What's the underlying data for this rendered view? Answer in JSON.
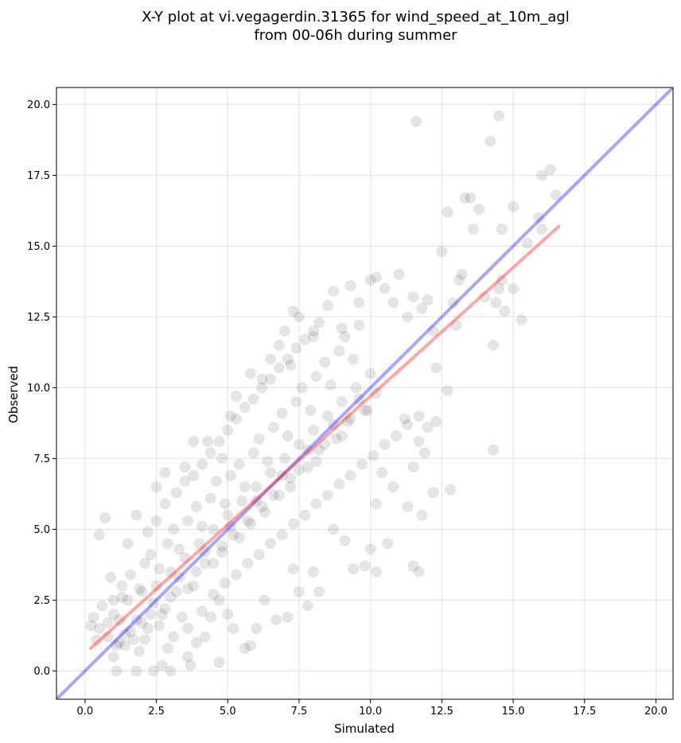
{
  "chart_data": {
    "type": "scatter",
    "title": [
      "X-Y plot at vi.vegagerdin.31365 for wind_speed_at_10m_agl",
      "from 00-06h during summer"
    ],
    "xlabel": "Simulated",
    "ylabel": "Observed",
    "xlim": [
      -1.0,
      20.6
    ],
    "ylim": [
      -1.0,
      20.6
    ],
    "xticks": [
      "0.0",
      "2.5",
      "5.0",
      "7.5",
      "10.0",
      "12.5",
      "15.0",
      "17.5",
      "20.0"
    ],
    "yticks": [
      "0.0",
      "2.5",
      "5.0",
      "7.5",
      "10.0",
      "12.5",
      "15.0",
      "17.5",
      "20.0"
    ],
    "grid": true,
    "point_color": "#000000",
    "point_opacity": 0.1,
    "series": [
      {
        "kind": "points",
        "points": [
          [
            0.5,
            1.5
          ],
          [
            0.8,
            1.2
          ],
          [
            1.0,
            2.0
          ],
          [
            1.2,
            1.0
          ],
          [
            1.5,
            2.5
          ],
          [
            1.8,
            1.8
          ],
          [
            2.0,
            2.8
          ],
          [
            2.2,
            1.5
          ],
          [
            2.5,
            3.0
          ],
          [
            2.8,
            2.2
          ],
          [
            3.0,
            3.5
          ],
          [
            3.2,
            2.8
          ],
          [
            3.5,
            4.0
          ],
          [
            3.8,
            3.0
          ],
          [
            4.0,
            4.5
          ],
          [
            4.2,
            3.8
          ],
          [
            4.5,
            5.0
          ],
          [
            4.8,
            4.2
          ],
          [
            5.0,
            5.5
          ],
          [
            5.2,
            4.8
          ],
          [
            5.5,
            6.0
          ],
          [
            5.8,
            5.2
          ],
          [
            6.0,
            6.5
          ],
          [
            6.2,
            5.8
          ],
          [
            6.5,
            7.0
          ],
          [
            6.8,
            6.2
          ],
          [
            7.0,
            7.5
          ],
          [
            7.2,
            6.8
          ],
          [
            7.5,
            8.0
          ],
          [
            7.8,
            7.2
          ],
          [
            8.0,
            8.5
          ],
          [
            8.2,
            7.8
          ],
          [
            8.5,
            9.0
          ],
          [
            8.8,
            8.2
          ],
          [
            9.0,
            9.5
          ],
          [
            9.2,
            8.8
          ],
          [
            9.5,
            10.0
          ],
          [
            9.8,
            9.2
          ],
          [
            10.0,
            10.5
          ],
          [
            10.2,
            9.8
          ],
          [
            0.7,
            5.4
          ],
          [
            0.5,
            4.8
          ],
          [
            0.9,
            3.3
          ],
          [
            1.3,
            2.6
          ],
          [
            1.0,
            0.5
          ],
          [
            1.1,
            0.0
          ],
          [
            1.8,
            0.0
          ],
          [
            2.4,
            0.0
          ],
          [
            2.7,
            0.2
          ],
          [
            3.0,
            0.0
          ],
          [
            3.6,
            0.5
          ],
          [
            3.7,
            0.2
          ],
          [
            4.7,
            0.3
          ],
          [
            1.5,
            4.5
          ],
          [
            1.8,
            5.5
          ],
          [
            2.5,
            6.5
          ],
          [
            2.8,
            7.0
          ],
          [
            3.5,
            7.2
          ],
          [
            3.8,
            8.1
          ],
          [
            4.3,
            8.1
          ],
          [
            4.8,
            7.5
          ],
          [
            5.1,
            9.0
          ],
          [
            5.3,
            9.7
          ],
          [
            5.8,
            10.5
          ],
          [
            6.2,
            10.3
          ],
          [
            6.5,
            11.0
          ],
          [
            6.8,
            11.5
          ],
          [
            7.0,
            12.0
          ],
          [
            7.2,
            10.8
          ],
          [
            7.5,
            12.5
          ],
          [
            7.3,
            12.7
          ],
          [
            8.0,
            11.8
          ],
          [
            8.2,
            12.3
          ],
          [
            8.5,
            12.9
          ],
          [
            8.7,
            13.4
          ],
          [
            9.0,
            12.1
          ],
          [
            9.3,
            13.6
          ],
          [
            9.6,
            13.0
          ],
          [
            10.0,
            13.8
          ],
          [
            10.2,
            13.9
          ],
          [
            10.5,
            13.5
          ],
          [
            10.8,
            13.0
          ],
          [
            11.0,
            14.0
          ],
          [
            11.3,
            12.5
          ],
          [
            11.5,
            13.2
          ],
          [
            11.8,
            12.8
          ],
          [
            12.0,
            13.1
          ],
          [
            12.2,
            12.0
          ],
          [
            12.5,
            14.8
          ],
          [
            12.7,
            16.2
          ],
          [
            12.9,
            13.0
          ],
          [
            13.1,
            13.8
          ],
          [
            13.3,
            16.7
          ],
          [
            13.5,
            16.7
          ],
          [
            13.6,
            15.6
          ],
          [
            13.8,
            16.3
          ],
          [
            14.0,
            13.2
          ],
          [
            14.3,
            11.5
          ],
          [
            14.5,
            13.5
          ],
          [
            14.4,
            13.0
          ],
          [
            14.6,
            13.8
          ],
          [
            14.7,
            12.7
          ],
          [
            14.6,
            15.6
          ],
          [
            15.0,
            13.5
          ],
          [
            15.0,
            16.4
          ],
          [
            15.3,
            12.4
          ],
          [
            15.5,
            15.1
          ],
          [
            15.9,
            16.0
          ],
          [
            16.0,
            15.6
          ],
          [
            16.0,
            17.5
          ],
          [
            16.3,
            17.7
          ],
          [
            16.5,
            16.8
          ],
          [
            14.2,
            18.7
          ],
          [
            14.5,
            19.6
          ],
          [
            11.6,
            19.4
          ],
          [
            14.3,
            7.8
          ],
          [
            12.7,
            9.9
          ],
          [
            13.0,
            12.2
          ],
          [
            13.2,
            14.0
          ],
          [
            12.3,
            10.7
          ],
          [
            11.2,
            8.9
          ],
          [
            11.5,
            7.2
          ],
          [
            11.7,
            8.1
          ],
          [
            11.9,
            7.7
          ],
          [
            12.2,
            6.3
          ],
          [
            12.0,
            8.6
          ],
          [
            12.3,
            8.8
          ],
          [
            12.8,
            6.4
          ],
          [
            11.3,
            5.8
          ],
          [
            11.8,
            5.5
          ],
          [
            11.5,
            3.7
          ],
          [
            11.7,
            3.5
          ],
          [
            10.6,
            4.5
          ],
          [
            10.8,
            6.5
          ],
          [
            10.2,
            5.9
          ],
          [
            10.4,
            7.0
          ],
          [
            10.0,
            4.3
          ],
          [
            10.2,
            3.5
          ],
          [
            9.8,
            3.7
          ],
          [
            9.4,
            3.6
          ],
          [
            9.1,
            4.6
          ],
          [
            8.7,
            5.0
          ],
          [
            8.2,
            2.8
          ],
          [
            8.0,
            3.5
          ],
          [
            7.8,
            2.3
          ],
          [
            7.5,
            2.8
          ],
          [
            7.3,
            3.6
          ],
          [
            7.1,
            1.9
          ],
          [
            6.7,
            1.8
          ],
          [
            6.3,
            2.5
          ],
          [
            6.0,
            1.5
          ],
          [
            5.8,
            0.9
          ],
          [
            5.6,
            0.8
          ],
          [
            5.2,
            1.5
          ],
          [
            5.0,
            2.0
          ],
          [
            4.7,
            2.5
          ],
          [
            4.4,
            1.9
          ],
          [
            4.2,
            1.2
          ],
          [
            3.9,
            1.0
          ],
          [
            3.6,
            1.5
          ],
          [
            3.4,
            1.9
          ],
          [
            3.1,
            1.2
          ],
          [
            2.9,
            0.8
          ],
          [
            2.6,
            1.6
          ],
          [
            2.3,
            2.0
          ],
          [
            2.1,
            1.1
          ],
          [
            1.9,
            0.7
          ],
          [
            1.6,
            1.4
          ],
          [
            1.4,
            0.9
          ],
          [
            1.2,
            1.8
          ],
          [
            0.3,
            1.9
          ],
          [
            0.2,
            1.6
          ],
          [
            0.4,
            1.1
          ],
          [
            0.6,
            2.3
          ],
          [
            0.8,
            1.7
          ],
          [
            1.0,
            2.5
          ],
          [
            1.3,
            3.0
          ],
          [
            1.6,
            3.4
          ],
          [
            1.9,
            2.9
          ],
          [
            2.1,
            3.8
          ],
          [
            2.3,
            4.1
          ],
          [
            2.6,
            3.6
          ],
          [
            2.9,
            4.5
          ],
          [
            3.1,
            5.0
          ],
          [
            3.3,
            4.3
          ],
          [
            3.6,
            5.3
          ],
          [
            3.9,
            5.8
          ],
          [
            4.1,
            5.1
          ],
          [
            4.4,
            6.1
          ],
          [
            4.6,
            6.7
          ],
          [
            4.9,
            5.9
          ],
          [
            5.1,
            6.9
          ],
          [
            5.4,
            7.3
          ],
          [
            5.6,
            6.5
          ],
          [
            5.9,
            7.7
          ],
          [
            6.1,
            8.2
          ],
          [
            6.4,
            7.4
          ],
          [
            6.6,
            8.6
          ],
          [
            6.9,
            9.1
          ],
          [
            7.1,
            8.3
          ],
          [
            7.4,
            9.5
          ],
          [
            7.6,
            10.0
          ],
          [
            7.9,
            9.2
          ],
          [
            8.1,
            10.4
          ],
          [
            8.4,
            10.9
          ],
          [
            8.6,
            10.1
          ],
          [
            8.9,
            11.3
          ],
          [
            9.1,
            11.8
          ],
          [
            9.4,
            11.0
          ],
          [
            9.6,
            12.2
          ],
          [
            1.1,
            0.9
          ],
          [
            1.4,
            1.3
          ],
          [
            1.7,
            1.1
          ],
          [
            2.0,
            1.7
          ],
          [
            2.4,
            2.4
          ],
          [
            2.7,
            2.0
          ],
          [
            3.0,
            2.6
          ],
          [
            3.3,
            3.3
          ],
          [
            3.6,
            2.9
          ],
          [
            3.9,
            3.5
          ],
          [
            4.2,
            4.2
          ],
          [
            4.5,
            3.8
          ],
          [
            4.8,
            4.4
          ],
          [
            5.1,
            5.1
          ],
          [
            5.4,
            4.7
          ],
          [
            5.7,
            5.3
          ],
          [
            6.0,
            6.0
          ],
          [
            6.3,
            5.6
          ],
          [
            6.6,
            6.2
          ],
          [
            6.9,
            6.9
          ],
          [
            7.2,
            6.5
          ],
          [
            7.5,
            7.1
          ],
          [
            7.8,
            7.8
          ],
          [
            8.1,
            7.4
          ],
          [
            8.4,
            8.0
          ],
          [
            8.7,
            8.7
          ],
          [
            9.0,
            8.3
          ],
          [
            9.3,
            8.9
          ],
          [
            9.6,
            9.6
          ],
          [
            9.9,
            9.2
          ],
          [
            2.2,
            4.9
          ],
          [
            2.5,
            5.3
          ],
          [
            2.8,
            5.9
          ],
          [
            3.2,
            6.3
          ],
          [
            3.5,
            6.7
          ],
          [
            3.8,
            6.9
          ],
          [
            4.1,
            7.3
          ],
          [
            4.4,
            7.7
          ],
          [
            4.7,
            8.1
          ],
          [
            5.0,
            8.5
          ],
          [
            5.3,
            8.9
          ],
          [
            5.6,
            9.3
          ],
          [
            5.9,
            9.6
          ],
          [
            6.2,
            10.0
          ],
          [
            6.5,
            10.3
          ],
          [
            6.8,
            10.7
          ],
          [
            7.1,
            11.0
          ],
          [
            7.4,
            11.4
          ],
          [
            7.7,
            11.7
          ],
          [
            8.0,
            12.0
          ],
          [
            4.1,
            2.1
          ],
          [
            4.5,
            2.7
          ],
          [
            4.9,
            3.1
          ],
          [
            5.3,
            3.4
          ],
          [
            5.7,
            3.8
          ],
          [
            6.1,
            4.1
          ],
          [
            6.5,
            4.5
          ],
          [
            6.9,
            4.8
          ],
          [
            7.3,
            5.2
          ],
          [
            7.7,
            5.5
          ],
          [
            8.1,
            5.9
          ],
          [
            8.5,
            6.2
          ],
          [
            8.9,
            6.6
          ],
          [
            9.3,
            6.9
          ],
          [
            9.7,
            7.3
          ],
          [
            10.1,
            7.6
          ],
          [
            10.5,
            8.0
          ],
          [
            10.9,
            8.3
          ],
          [
            11.3,
            8.7
          ],
          [
            11.7,
            9.0
          ]
        ]
      },
      {
        "kind": "line",
        "color": "#0000ff",
        "opacity": 0.35,
        "from": [
          -1.0,
          -1.0
        ],
        "to": [
          20.6,
          20.6
        ]
      },
      {
        "kind": "line",
        "color": "#ff0000",
        "opacity": 0.35,
        "from": [
          0.2,
          0.8
        ],
        "to": [
          16.6,
          15.7
        ]
      }
    ]
  }
}
